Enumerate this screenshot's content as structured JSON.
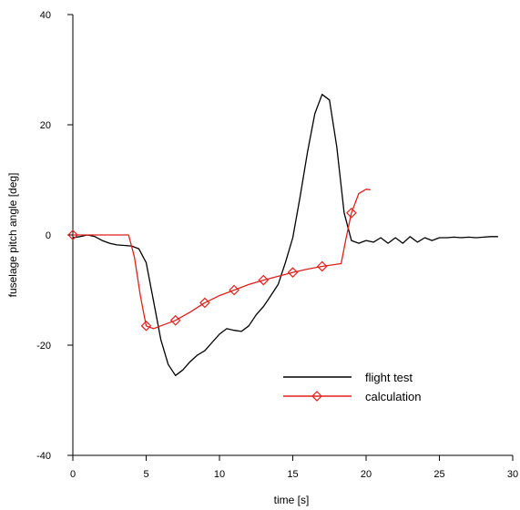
{
  "chart_data": {
    "type": "line",
    "xlabel": "time [s]",
    "ylabel": "fuselage pitch angle [deg]",
    "xlim": [
      0,
      30
    ],
    "ylim": [
      -40,
      40
    ],
    "xticks": [
      0,
      5,
      10,
      15,
      20,
      25,
      30
    ],
    "yticks": [
      -40,
      -20,
      0,
      20,
      40
    ],
    "grid": false,
    "legend": "bottom-right",
    "series": [
      {
        "name": "flight test",
        "color": "#000000",
        "marker": "none",
        "x": [
          0,
          0.5,
          1,
          1.5,
          2,
          2.5,
          3,
          3.5,
          4,
          4.5,
          5,
          5.5,
          6,
          6.5,
          7,
          7.5,
          8,
          8.5,
          9,
          9.5,
          10,
          10.5,
          11,
          11.5,
          12,
          12.5,
          13,
          13.5,
          14,
          14.5,
          15,
          15.5,
          16,
          16.5,
          17,
          17.5,
          18,
          18.5,
          19,
          19.5,
          20,
          20.5,
          21,
          21.5,
          22,
          22.5,
          23,
          23.5,
          24,
          24.5,
          25,
          25.5,
          26,
          26.5,
          27,
          27.5,
          28,
          28.5,
          29
        ],
        "values": [
          -0.5,
          -0.3,
          0,
          -0.3,
          -1,
          -1.5,
          -1.8,
          -1.9,
          -2,
          -2.5,
          -5,
          -12,
          -19,
          -23.5,
          -25.5,
          -24.5,
          -23,
          -21.8,
          -21,
          -19.5,
          -18,
          -17,
          -17.3,
          -17.5,
          -16.5,
          -14.5,
          -13,
          -11,
          -9,
          -5,
          -0.5,
          7,
          15,
          22,
          25.5,
          24.5,
          16,
          4,
          -1,
          -1.5,
          -1,
          -1.3,
          -0.5,
          -1.5,
          -0.5,
          -1.5,
          -0.3,
          -1.3,
          -0.5,
          -1,
          -0.5,
          -0.5,
          -0.4,
          -0.5,
          -0.4,
          -0.5,
          -0.4,
          -0.3,
          -0.3
        ]
      },
      {
        "name": "calculation",
        "color": "#e0201b",
        "marker": "diamond",
        "x": [
          0,
          1,
          2,
          3,
          3.8,
          4.2,
          4.6,
          5,
          5.5,
          6,
          7,
          8,
          9,
          10,
          11,
          12,
          13,
          14,
          15,
          16,
          17,
          18,
          18.3,
          18.6,
          19,
          19.5,
          20,
          20.3
        ],
        "values": [
          0,
          0,
          0,
          0,
          0,
          -4,
          -11,
          -16.5,
          -17,
          -16.5,
          -15.5,
          -14,
          -12.3,
          -11,
          -10,
          -9,
          -8.2,
          -7.5,
          -6.8,
          -6.2,
          -5.7,
          -5.3,
          -5.2,
          -1,
          4,
          7.5,
          8.3,
          8.2
        ],
        "marker_x": [
          0,
          5,
          7,
          9,
          11,
          13,
          15,
          17,
          19
        ],
        "marker_values": [
          0,
          -16.5,
          -15.5,
          -12.3,
          -10,
          -8.2,
          -6.8,
          -5.7,
          4
        ]
      }
    ]
  }
}
